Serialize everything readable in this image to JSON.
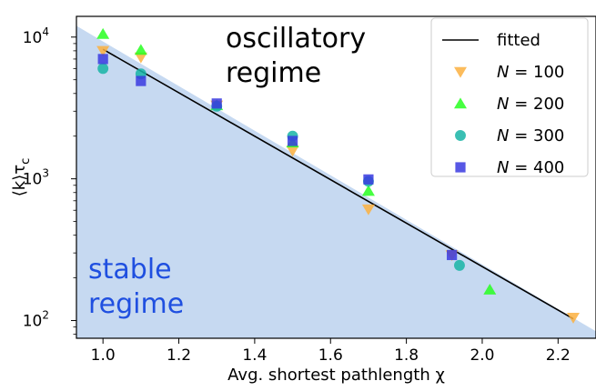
{
  "chart_data": {
    "type": "scatter",
    "xlabel": "Avg. shortest pathlength χ",
    "ylabel_parts": {
      "main": "⟨k⟩τ",
      "sub": "c"
    },
    "xlim": [
      0.93,
      2.3
    ],
    "ylim": [
      75,
      14000
    ],
    "yscale": "log",
    "x_ticks": [
      1.0,
      1.2,
      1.4,
      1.6,
      1.8,
      2.0,
      2.2
    ],
    "x_tick_labels": [
      "1.0",
      "1.2",
      "1.4",
      "1.6",
      "1.8",
      "2.0",
      "2.2"
    ],
    "y_ticks": [
      {
        "value": 100,
        "base": "10",
        "exp": "2"
      },
      {
        "value": 1000,
        "base": "10",
        "exp": "3"
      },
      {
        "value": 10000,
        "base": "10",
        "exp": "4"
      }
    ],
    "legend_placement": "top-right",
    "fit": {
      "name": "fitted",
      "color": "#000000",
      "points": [
        [
          1.0,
          8200
        ],
        [
          2.24,
          103
        ]
      ]
    },
    "stable_region": {
      "label_lines": [
        "stable",
        "regime"
      ],
      "color": "#c6d9f1",
      "text_color": "#1f4fe0",
      "boundary": [
        [
          0.93,
          12000
        ],
        [
          2.3,
          84
        ]
      ]
    },
    "oscillatory_label_lines": [
      "oscillatory",
      "regime"
    ],
    "series": [
      {
        "name": "N = 100",
        "n_value": "100",
        "marker": "triangle-down",
        "color": "#fbb040",
        "points": [
          [
            1.0,
            8000
          ],
          [
            1.1,
            7200
          ],
          [
            1.3,
            3300
          ],
          [
            1.5,
            1580
          ],
          [
            1.7,
            610
          ],
          [
            1.92,
            290
          ],
          [
            2.24,
            105
          ]
        ]
      },
      {
        "name": "N = 200",
        "n_value": "200",
        "marker": "triangle-up",
        "color": "#27ff20",
        "points": [
          [
            1.0,
            10500
          ],
          [
            1.1,
            8100
          ],
          [
            1.3,
            3300
          ],
          [
            1.5,
            1800
          ],
          [
            1.7,
            820
          ],
          [
            2.02,
            165
          ]
        ]
      },
      {
        "name": "N = 300",
        "n_value": "300",
        "marker": "circle",
        "color": "#17b4a6",
        "points": [
          [
            1.0,
            6000
          ],
          [
            1.1,
            5500
          ],
          [
            1.3,
            3250
          ],
          [
            1.5,
            2000
          ],
          [
            1.7,
            960
          ],
          [
            1.94,
            245
          ]
        ]
      },
      {
        "name": "N = 400",
        "n_value": "400",
        "marker": "square",
        "color": "#3a3ae0",
        "points": [
          [
            1.0,
            7000
          ],
          [
            1.1,
            4900
          ],
          [
            1.3,
            3400
          ],
          [
            1.5,
            1850
          ],
          [
            1.7,
            990
          ],
          [
            1.92,
            290
          ]
        ]
      }
    ]
  }
}
